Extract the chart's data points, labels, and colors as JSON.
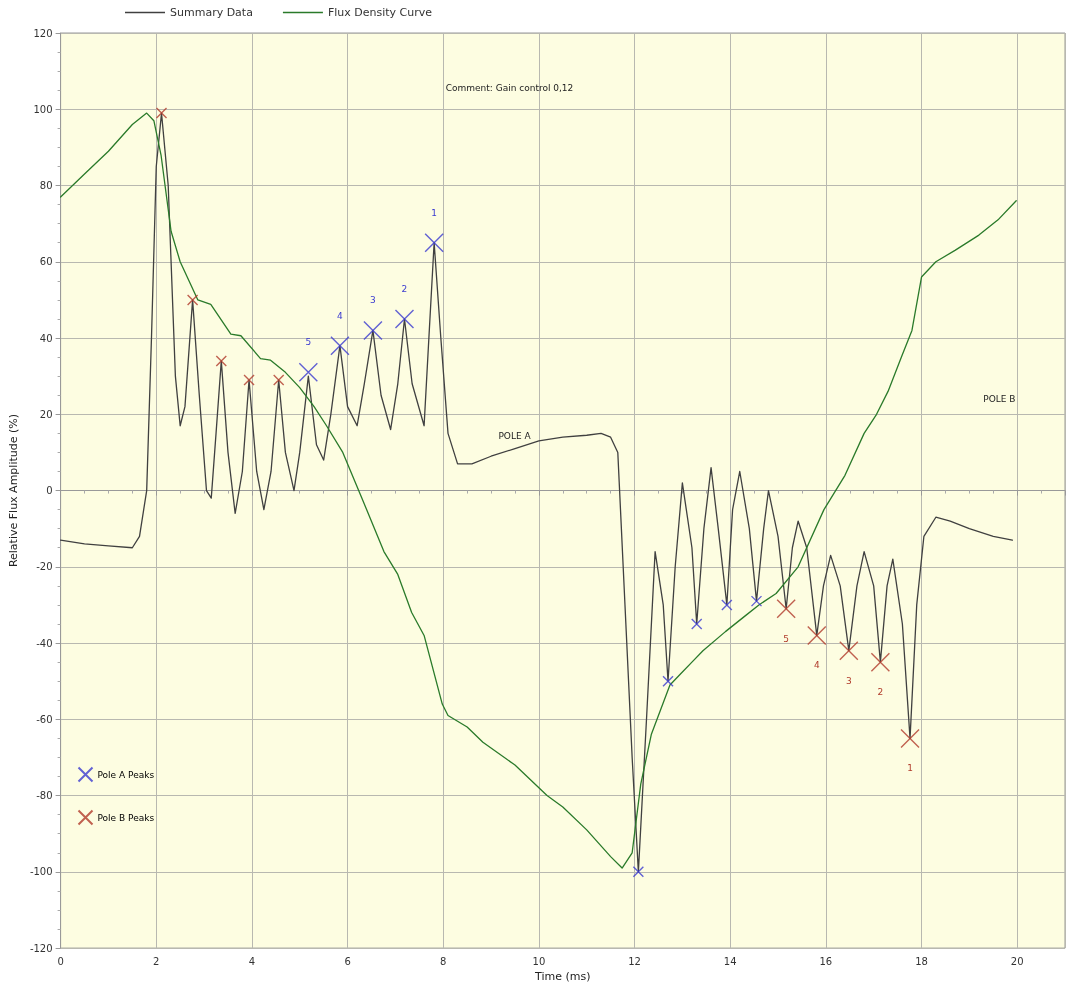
{
  "chart_data": {
    "type": "line",
    "xlabel": "Time (ms)",
    "ylabel": "Relative Flux Amplitude (%)",
    "xlim": [
      0,
      21
    ],
    "xticks": [
      0,
      2,
      4,
      6,
      8,
      10,
      12,
      14,
      16,
      18,
      20
    ],
    "ylim": [
      -120,
      120
    ],
    "yticks": [
      -120,
      -100,
      -80,
      -60,
      -40,
      -20,
      0,
      20,
      40,
      60,
      80,
      100,
      120
    ],
    "grid": true,
    "legend": "top left",
    "line_style": "solid",
    "annotations": [
      "Comment: Gain control 0,12",
      "POLE A",
      "POLE B",
      {
        "text": "5",
        "x": 5.18,
        "y": 31
      },
      {
        "text": "4",
        "x": 5.84,
        "y": 38
      },
      {
        "text": "3",
        "x": 6.53,
        "y": 42
      },
      {
        "text": "2",
        "x": 7.19,
        "y": 45
      },
      {
        "text": "1",
        "x": 7.81,
        "y": 65
      },
      {
        "text": "5",
        "x": 15.17,
        "y": -31
      },
      {
        "text": "4",
        "x": 15.81,
        "y": -38
      },
      {
        "text": "3",
        "x": 16.48,
        "y": -42
      },
      {
        "text": "2",
        "x": 17.14,
        "y": -45
      },
      {
        "text": "1",
        "x": 17.76,
        "y": -65
      }
    ],
    "series": [
      {
        "name": "Summary Data",
        "color": "#404040",
        "x": [
          0,
          0.5,
          1,
          1.5,
          1.65,
          1.8,
          1.9,
          2.0,
          2.11,
          2.25,
          2.4,
          2.5,
          2.6,
          2.76,
          2.9,
          3.05,
          3.15,
          3.25,
          3.36,
          3.5,
          3.65,
          3.8,
          3.94,
          4.1,
          4.25,
          4.4,
          4.56,
          4.7,
          4.88,
          5.0,
          5.18,
          5.35,
          5.5,
          5.65,
          5.84,
          6.0,
          6.2,
          6.35,
          6.53,
          6.7,
          6.9,
          7.05,
          7.19,
          7.35,
          7.6,
          7.7,
          7.81,
          7.95,
          8.1,
          8.3,
          8.6,
          9.0,
          9.5,
          10,
          10.5,
          11,
          11.3,
          11.5,
          11.65,
          11.8,
          11.95,
          12.08,
          12.25,
          12.43,
          12.6,
          12.7,
          12.85,
          13.0,
          13.2,
          13.3,
          13.45,
          13.6,
          13.75,
          13.93,
          14.05,
          14.2,
          14.4,
          14.55,
          14.7,
          14.8,
          15.0,
          15.17,
          15.3,
          15.42,
          15.6,
          15.81,
          15.95,
          16.1,
          16.3,
          16.48,
          16.65,
          16.8,
          17.0,
          17.14,
          17.28,
          17.4,
          17.6,
          17.76,
          17.9,
          18.05,
          18.3,
          18.6,
          19.0,
          19.5,
          19.9
        ],
        "values": [
          -13,
          -14,
          -14.5,
          -15,
          -12,
          0,
          40,
          85,
          99,
          80,
          30,
          17,
          22,
          50,
          25,
          0,
          -2,
          15,
          34,
          10,
          -6,
          5,
          29,
          5,
          -5,
          5,
          29,
          10,
          0,
          10,
          30,
          12,
          8,
          20,
          38,
          22,
          17,
          28,
          42,
          25,
          16,
          28,
          45,
          28,
          17,
          40,
          65,
          40,
          15,
          7,
          7,
          9,
          11,
          13,
          14,
          14.5,
          15,
          14,
          10,
          -30,
          -70,
          -100,
          -60,
          -16,
          -30,
          -50,
          -20,
          2,
          -15,
          -35,
          -10,
          6,
          -10,
          -30,
          -5,
          5,
          -10,
          -29,
          -10,
          0,
          -12,
          -31,
          -15,
          -8,
          -15,
          -38,
          -25,
          -17,
          -25,
          -42,
          -25,
          -16,
          -25,
          -45,
          -25,
          -18,
          -35,
          -65,
          -30,
          -12,
          -7,
          -8,
          -10,
          -12,
          -13
        ]
      },
      {
        "name": "Flux Density Curve",
        "color": "#2a7a2a",
        "x": [
          0,
          0.5,
          1,
          1.5,
          1.8,
          1.95,
          2.1,
          2.31,
          2.5,
          2.87,
          3.14,
          3.56,
          3.77,
          4.18,
          4.39,
          4.7,
          5.0,
          5.3,
          5.56,
          5.9,
          6.3,
          6.76,
          7.05,
          7.34,
          7.6,
          7.98,
          8.1,
          8.5,
          8.83,
          9.5,
          10.17,
          10.5,
          11,
          11.5,
          11.74,
          11.95,
          12.13,
          12.35,
          12.74,
          12.97,
          13.2,
          13.43,
          13.9,
          14.3,
          14.6,
          14.96,
          15.42,
          15.96,
          16.4,
          16.8,
          17.06,
          17.3,
          17.58,
          17.8,
          18.0,
          18.3,
          18.7,
          19.2,
          19.6,
          19.98
        ],
        "values": [
          77,
          83,
          89,
          96,
          99,
          97,
          88,
          68,
          60,
          50,
          48.8,
          41,
          40.6,
          34.6,
          34.2,
          31,
          27,
          22,
          17,
          10,
          -2,
          -16,
          -22,
          -32,
          -38,
          -56,
          -59,
          -62,
          -66,
          -72,
          -80,
          -83,
          -89,
          -96,
          -99,
          -95,
          -77,
          -64,
          -51,
          -48,
          -45,
          -42,
          -37,
          -33,
          -30,
          -27,
          -20,
          -5,
          4,
          15,
          20,
          26,
          35,
          42,
          56,
          60,
          63,
          67,
          71,
          76
        ]
      },
      {
        "name": "Pole A Peaks",
        "type": "scatter",
        "marker": "cross",
        "color": "#3a3ad0",
        "x": [
          5.18,
          5.84,
          6.53,
          7.19,
          7.81,
          12.08,
          12.7,
          13.3,
          13.93,
          14.55
        ],
        "values": [
          31,
          38,
          42,
          45,
          65,
          -100,
          -50,
          -35,
          -30,
          -29
        ]
      },
      {
        "name": "Pole B Peaks",
        "type": "scatter",
        "marker": "cross",
        "color": "#b03a2a",
        "x": [
          2.11,
          2.76,
          3.36,
          3.94,
          4.56,
          15.17,
          15.81,
          16.48,
          17.14,
          17.76
        ],
        "values": [
          99,
          50,
          34,
          29,
          29,
          -31,
          -38,
          -42,
          -45,
          -65
        ]
      }
    ]
  }
}
